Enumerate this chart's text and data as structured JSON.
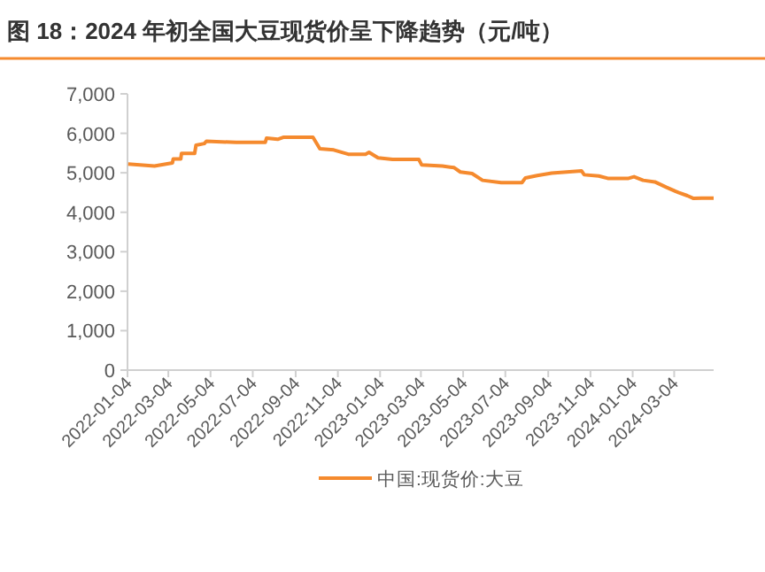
{
  "chart_data": {
    "type": "line",
    "title": "图 18：2024 年初全国大豆现货价呈下降趋势（元/吨）",
    "x": [
      "2022-01-05",
      "2022-02-12",
      "2022-03-10",
      "2022-03-11",
      "2022-03-22",
      "2022-03-23",
      "2022-04-11",
      "2022-04-13",
      "2022-04-25",
      "2022-04-28",
      "2022-06-10",
      "2022-07-22",
      "2022-07-24",
      "2022-08-09",
      "2022-08-17",
      "2022-09-29",
      "2022-10-09",
      "2022-10-29",
      "2022-11-19",
      "2022-12-14",
      "2022-12-19",
      "2023-01-01",
      "2023-01-22",
      "2023-03-01",
      "2023-03-05",
      "2023-04-04",
      "2023-04-21",
      "2023-04-30",
      "2023-05-17",
      "2023-06-01",
      "2023-06-28",
      "2023-07-28",
      "2023-08-02",
      "2023-08-19",
      "2023-09-09",
      "2023-10-22",
      "2023-10-26",
      "2023-11-16",
      "2023-11-29",
      "2023-12-29",
      "2024-01-06",
      "2024-01-19",
      "2024-02-05",
      "2024-02-22",
      "2024-03-10",
      "2024-03-23",
      "2024-04-01",
      "2024-04-13",
      "2024-04-30"
    ],
    "series": [
      {
        "name": "中国:现货价:大豆",
        "color": "#f58a2e",
        "values": [
          5220,
          5170,
          5250,
          5350,
          5350,
          5490,
          5490,
          5700,
          5740,
          5800,
          5770,
          5770,
          5880,
          5850,
          5900,
          5900,
          5610,
          5580,
          5470,
          5470,
          5520,
          5380,
          5340,
          5340,
          5200,
          5170,
          5130,
          5020,
          4980,
          4810,
          4750,
          4750,
          4870,
          4930,
          4990,
          5050,
          4950,
          4920,
          4860,
          4860,
          4900,
          4810,
          4770,
          4630,
          4500,
          4420,
          4350,
          4360,
          4360
        ]
      }
    ],
    "xlim": [
      "2022-01-04",
      "2024-04-30"
    ],
    "xticks": [
      {
        "value": "2022-01-04",
        "label": "2022-01-04"
      },
      {
        "value": "2022-03-04",
        "label": "2022-03-04"
      },
      {
        "value": "2022-05-04",
        "label": "2022-05-04"
      },
      {
        "value": "2022-07-04",
        "label": "2022-07-04"
      },
      {
        "value": "2022-09-04",
        "label": "2022-09-04"
      },
      {
        "value": "2022-11-04",
        "label": "2022-11-04"
      },
      {
        "value": "2023-01-04",
        "label": "2023-01-04"
      },
      {
        "value": "2023-03-04",
        "label": "2023-03-04"
      },
      {
        "value": "2023-05-04",
        "label": "2023-05-04"
      },
      {
        "value": "2023-07-04",
        "label": "2023-07-04"
      },
      {
        "value": "2023-09-04",
        "label": "2023-09-04"
      },
      {
        "value": "2023-11-04",
        "label": "2023-11-04"
      },
      {
        "value": "2024-01-04",
        "label": "2024-01-04"
      },
      {
        "value": "2024-03-04",
        "label": "2024-03-04"
      }
    ],
    "ylim": [
      0,
      7000
    ],
    "yticks": [
      {
        "value": 0,
        "label": "0"
      },
      {
        "value": 1000,
        "label": "1,000"
      },
      {
        "value": 2000,
        "label": "2,000"
      },
      {
        "value": 3000,
        "label": "3,000"
      },
      {
        "value": 4000,
        "label": "4,000"
      },
      {
        "value": 5000,
        "label": "5,000"
      },
      {
        "value": 6000,
        "label": "6,000"
      },
      {
        "value": 7000,
        "label": "7,000"
      }
    ],
    "grid": false,
    "legend": "bottom",
    "marker": "none",
    "line_style": "solid"
  }
}
